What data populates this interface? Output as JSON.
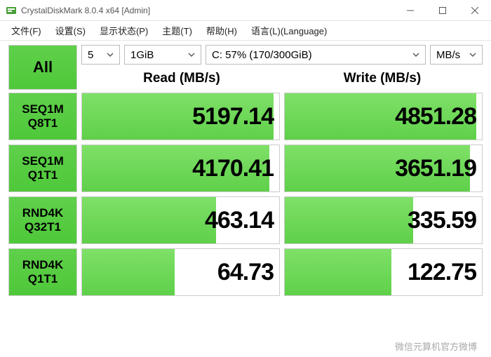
{
  "window": {
    "title": "CrystalDiskMark 8.0.4 x64 [Admin]"
  },
  "menu": {
    "file": "文件(F)",
    "settings": "设置(S)",
    "profile": "显示状态(P)",
    "theme": "主题(T)",
    "help": "帮助(H)",
    "language": "语言(L)(Language)"
  },
  "controls": {
    "all_label": "All",
    "count": "5",
    "size": "1GiB",
    "drive": "C: 57% (170/300GiB)",
    "unit": "MB/s"
  },
  "headers": {
    "read": "Read (MB/s)",
    "write": "Write (MB/s)"
  },
  "rows": [
    {
      "l1": "SEQ1M",
      "l2": "Q8T1",
      "read": "5197.14",
      "read_pct": 97,
      "write": "4851.28",
      "write_pct": 97
    },
    {
      "l1": "SEQ1M",
      "l2": "Q1T1",
      "read": "4170.41",
      "read_pct": 95,
      "write": "3651.19",
      "write_pct": 94
    },
    {
      "l1": "RND4K",
      "l2": "Q32T1",
      "read": "463.14",
      "read_pct": 68,
      "write": "335.59",
      "write_pct": 65
    },
    {
      "l1": "RND4K",
      "l2": "Q1T1",
      "read": "64.73",
      "read_pct": 47,
      "write": "122.75",
      "write_pct": 54
    }
  ],
  "colors": {
    "green_light": "#7fe068",
    "green_dark": "#4fc83a",
    "border": "#cccccc",
    "text": "#000000"
  },
  "watermark": "微信元算机官方微博"
}
